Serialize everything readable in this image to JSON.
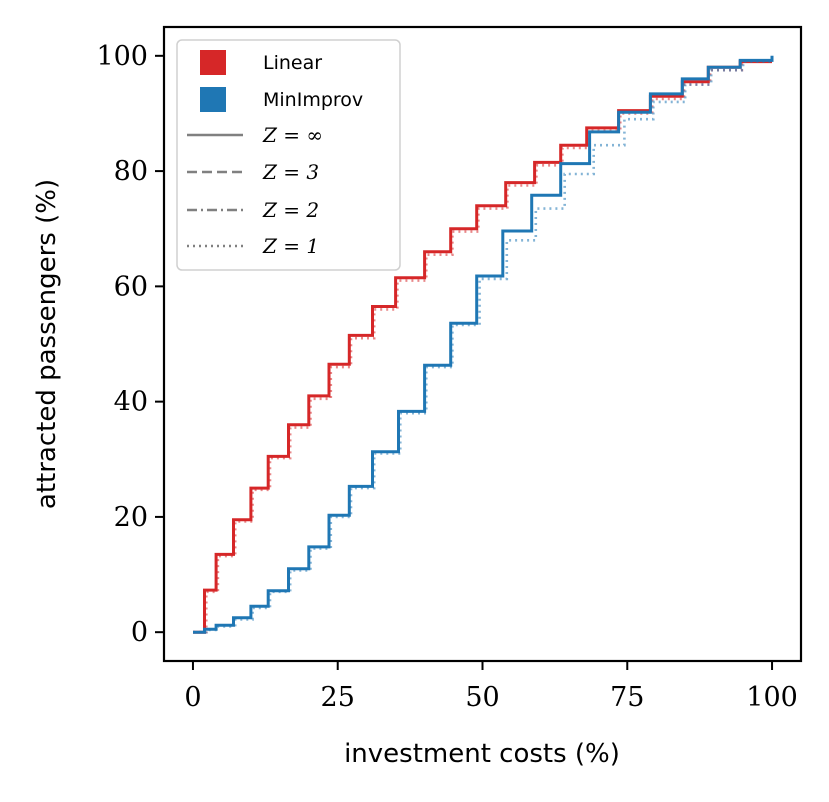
{
  "chart_data": {
    "type": "line",
    "step": true,
    "xlabel": "investment costs (%)",
    "ylabel": "attracted passengers (%)",
    "xlim": [
      -5,
      105
    ],
    "ylim": [
      -5,
      105
    ],
    "xticks": [
      0,
      25,
      50,
      75,
      100
    ],
    "yticks": [
      0,
      20,
      40,
      60,
      80,
      100
    ],
    "grid": false,
    "legend_position": "top-left",
    "colors": {
      "Linear": "#d62728",
      "MinImprov": "#1f77b4",
      "style_gray": "#808080"
    },
    "legend": [
      {
        "label": "Linear",
        "kind": "color",
        "color": "#d62728"
      },
      {
        "label": "MinImprov",
        "kind": "color",
        "color": "#1f77b4"
      },
      {
        "label": "Z = ∞",
        "kind": "linestyle",
        "style": "solid"
      },
      {
        "label": "Z = 3",
        "kind": "linestyle",
        "style": "dashed"
      },
      {
        "label": "Z = 2",
        "kind": "linestyle",
        "style": "dashdot"
      },
      {
        "label": "Z = 1",
        "kind": "linestyle",
        "style": "dotted"
      }
    ],
    "series": [
      {
        "name": "Linear",
        "Z": "∞",
        "style": "solid",
        "color": "#d62728",
        "x": [
          0,
          2,
          2,
          4,
          4,
          7,
          7,
          10,
          10,
          13,
          13,
          16.5,
          16.5,
          20,
          20,
          23.5,
          23.5,
          27,
          27,
          31,
          31,
          35,
          35,
          40,
          40,
          44.5,
          44.5,
          49,
          49,
          54,
          54,
          59,
          59,
          63.5,
          63.5,
          68,
          68,
          73.5,
          73.5,
          79,
          79,
          84.5,
          84.5,
          89,
          89,
          94.5,
          94.5,
          100
        ],
        "y": [
          0,
          0,
          7.3,
          7.3,
          13.5,
          13.5,
          19.5,
          19.5,
          25,
          25,
          30.5,
          30.5,
          36,
          36,
          41,
          41,
          46.5,
          46.5,
          51.5,
          51.5,
          56.5,
          56.5,
          61.5,
          61.5,
          66,
          66,
          70,
          70,
          74,
          74,
          78,
          78,
          81.5,
          81.5,
          84.5,
          84.5,
          87.5,
          87.5,
          90.5,
          90.5,
          93,
          93,
          95.5,
          95.5,
          98,
          98,
          99,
          99
        ]
      },
      {
        "name": "Linear",
        "Z": "1",
        "style": "dotted",
        "color": "#d62728",
        "x": [
          0,
          2.3,
          2.3,
          4.3,
          4.3,
          7.3,
          7.3,
          10.3,
          10.3,
          13.3,
          13.3,
          16.8,
          16.8,
          20.3,
          20.3,
          23.8,
          23.8,
          27.3,
          27.3,
          31.3,
          31.3,
          35.3,
          35.3,
          40.3,
          40.3,
          44.8,
          44.8,
          49.3,
          49.3,
          54.3,
          54.3,
          59.3,
          59.3,
          63.8,
          63.8,
          68.3,
          68.3,
          73.8,
          73.8,
          79.3,
          79.3,
          84.8,
          84.8,
          89.3,
          89.3,
          94.8,
          94.8,
          100
        ],
        "y": [
          0,
          0,
          7,
          7,
          13.2,
          13.2,
          19.2,
          19.2,
          24.7,
          24.7,
          30.2,
          30.2,
          35.5,
          35.5,
          40.5,
          40.5,
          46,
          46,
          51,
          51,
          56,
          56,
          61,
          61,
          65.5,
          65.5,
          69.5,
          69.5,
          73.5,
          73.5,
          77.5,
          77.5,
          81,
          81,
          84,
          84,
          87,
          87,
          90,
          90,
          92.5,
          92.5,
          95,
          95,
          97.5,
          97.5,
          99,
          99
        ]
      },
      {
        "name": "MinImprov",
        "Z": "∞",
        "style": "solid",
        "color": "#1f77b4",
        "x": [
          0,
          2,
          2,
          4,
          4,
          7,
          7,
          10,
          10,
          13,
          13,
          16.5,
          16.5,
          20,
          20,
          23.5,
          23.5,
          27,
          27,
          31,
          31,
          35.5,
          35.5,
          40,
          40,
          44.5,
          44.5,
          49,
          49,
          53.5,
          53.5,
          58.5,
          58.5,
          63.5,
          63.5,
          68.5,
          68.5,
          73.5,
          73.5,
          79,
          79,
          84.5,
          84.5,
          89,
          89,
          94.5,
          94.5,
          100,
          100
        ],
        "y": [
          0,
          0,
          0.5,
          0.5,
          1.2,
          1.2,
          2.5,
          2.5,
          4.5,
          4.5,
          7.2,
          7.2,
          11,
          11,
          14.8,
          14.8,
          20.3,
          20.3,
          25.3,
          25.3,
          31.3,
          31.3,
          38.3,
          38.3,
          46.3,
          46.3,
          53.6,
          53.6,
          61.8,
          61.8,
          69.6,
          69.6,
          75.8,
          75.8,
          81.3,
          81.3,
          86.8,
          86.8,
          90.2,
          90.2,
          93.4,
          93.4,
          96,
          96,
          98,
          98,
          99.2,
          99.2,
          100
        ]
      },
      {
        "name": "MinImprov",
        "Z": "1",
        "style": "dotted",
        "color": "#1f77b4",
        "x": [
          0,
          2.3,
          2.3,
          4.3,
          4.3,
          7.3,
          7.3,
          10.3,
          10.3,
          13.3,
          13.3,
          16.8,
          16.8,
          20.3,
          20.3,
          23.8,
          23.8,
          27.3,
          27.3,
          31.3,
          31.3,
          35.8,
          35.8,
          40.3,
          40.3,
          44.8,
          44.8,
          49.5,
          49.5,
          54.2,
          54.2,
          59.2,
          59.2,
          64.2,
          64.2,
          69.2,
          69.2,
          74.5,
          74.5,
          79.5,
          79.5,
          85,
          85,
          89.5,
          89.5,
          95,
          95,
          100
        ],
        "y": [
          0,
          0,
          0.4,
          0.4,
          1,
          1,
          2.2,
          2.2,
          4.2,
          4.2,
          7,
          7,
          10.7,
          10.7,
          14.5,
          14.5,
          20,
          20,
          25,
          25,
          31,
          31,
          38,
          38,
          46,
          46,
          53.3,
          53.3,
          61.3,
          61.3,
          68,
          68,
          73.5,
          73.5,
          79.5,
          79.5,
          84.5,
          84.5,
          89,
          89,
          92,
          92,
          95,
          95,
          97.5,
          97.5,
          99,
          99
        ]
      }
    ]
  }
}
